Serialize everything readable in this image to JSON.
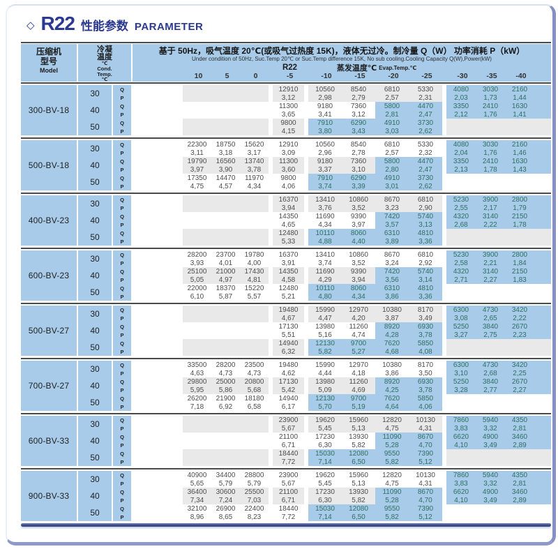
{
  "title": {
    "diamond": "◇",
    "r22": "R22",
    "cn": "性能参数",
    "en": "PARAMETER"
  },
  "colors": {
    "title_navy": "#2b3990",
    "panel_blue": "#a7cbe9",
    "highlight_blue": "#a7cbe9",
    "stripe_gray": "#e9e9e9",
    "value_on_blue": "#2e6f62",
    "separator_dark": "#4a4a4a"
  },
  "header": {
    "model_cn1": "压缩机",
    "model_cn2": "型号",
    "model_en": "Model",
    "cond_cn1": "冷凝",
    "cond_cn2": "温度",
    "cond_deg1": "℃",
    "cond_en1": "Cond.",
    "cond_en2": "Temp.",
    "cond_deg2": "℃",
    "condition_cn": "基于 50Hz，吸气温度 20℃(或吸气过热度 15K)，液体无过冷。制冷量 Q（W）  功率消耗 P（kW）",
    "condition_en": "Under condition of 50Hz, Suc.Temp 20℃ or Suc.Temp difference 15K, No sub cooling.Cooling Capacity Q(W),Power(kW)",
    "refrigerant": "R22",
    "evap_cn": "蒸发温度℃",
    "evap_en": "Evap.Temp.℃",
    "temps": [
      "10",
      "5",
      "0",
      "-5",
      "-10",
      "-15",
      "-20",
      "-25",
      "-30",
      "-35",
      "-40"
    ]
  },
  "qp_labels": [
    "Q",
    "P"
  ],
  "blocks": [
    {
      "model": "300-BV-18",
      "rows": [
        {
          "temp": "30",
          "q": [
            "",
            "",
            "",
            "12910",
            "10560",
            "8540",
            "6810",
            "5330",
            "4080",
            "3030",
            "2160"
          ],
          "p": [
            "",
            "",
            "",
            "3,12",
            "2,98",
            "2,79",
            "2,57",
            "2,31",
            "2,03",
            "1,73",
            "1,44"
          ]
        },
        {
          "temp": "40",
          "q": [
            "",
            "",
            "",
            "11300",
            "9180",
            "7360",
            "5800",
            "4470",
            "3350",
            "2410",
            "1630"
          ],
          "p": [
            "",
            "",
            "",
            "3,65",
            "3,41",
            "3,12",
            "2,81",
            "2,47",
            "2,12",
            "1,76",
            "1,41"
          ]
        },
        {
          "temp": "50",
          "q": [
            "",
            "",
            "",
            "9800",
            "7910",
            "6290",
            "4910",
            "3730",
            "",
            "",
            ""
          ],
          "p": [
            "",
            "",
            "",
            "4,15",
            "3,80",
            "3,43",
            "3,03",
            "2,62",
            "",
            "",
            ""
          ]
        }
      ]
    },
    {
      "model": "500-BV-18",
      "rows": [
        {
          "temp": "30",
          "q": [
            "22300",
            "18750",
            "15620",
            "12910",
            "10560",
            "8540",
            "6810",
            "5330",
            "4080",
            "3030",
            "2160"
          ],
          "p": [
            "3,11",
            "3,18",
            "3,17",
            "3,09",
            "2,96",
            "2,78",
            "2,57",
            "2,32",
            "2,04",
            "1,76",
            "1,46"
          ]
        },
        {
          "temp": "40",
          "q": [
            "19790",
            "16560",
            "13740",
            "11300",
            "9180",
            "7360",
            "5800",
            "4470",
            "3350",
            "2410",
            "1630"
          ],
          "p": [
            "3,97",
            "3,90",
            "3,78",
            "3,60",
            "3,37",
            "3,10",
            "2,80",
            "2,47",
            "2,13",
            "1,78",
            "1,43"
          ]
        },
        {
          "temp": "50",
          "q": [
            "17350",
            "14470",
            "11970",
            "9800",
            "7910",
            "6290",
            "4910",
            "3730",
            "",
            "",
            ""
          ],
          "p": [
            "4,75",
            "4,57",
            "4,34",
            "4,06",
            "3,74",
            "3,39",
            "3,01",
            "2,62",
            "",
            "",
            ""
          ]
        }
      ]
    },
    {
      "model": "400-BV-23",
      "rows": [
        {
          "temp": "30",
          "q": [
            "",
            "",
            "",
            "16370",
            "13410",
            "10860",
            "8670",
            "6810",
            "5230",
            "3900",
            "2800"
          ],
          "p": [
            "",
            "",
            "",
            "3,94",
            "3,76",
            "3,52",
            "3,23",
            "2,90",
            "2,55",
            "2,17",
            "1,79"
          ]
        },
        {
          "temp": "40",
          "q": [
            "",
            "",
            "",
            "14350",
            "11690",
            "9390",
            "7420",
            "5740",
            "4320",
            "3140",
            "2150"
          ],
          "p": [
            "",
            "",
            "",
            "4,65",
            "4,34",
            "3,97",
            "3,57",
            "3,13",
            "2,68",
            "2,22",
            "1,78"
          ]
        },
        {
          "temp": "50",
          "q": [
            "",
            "",
            "",
            "12480",
            "10110",
            "8060",
            "6310",
            "4810",
            "",
            "",
            ""
          ],
          "p": [
            "",
            "",
            "",
            "5,33",
            "4,88",
            "4,40",
            "3,89",
            "3,36",
            "",
            "",
            ""
          ]
        }
      ]
    },
    {
      "model": "600-BV-23",
      "rows": [
        {
          "temp": "30",
          "q": [
            "28200",
            "23700",
            "19780",
            "16370",
            "13410",
            "10860",
            "8670",
            "6810",
            "5230",
            "3900",
            "2800"
          ],
          "p": [
            "3,93",
            "4,01",
            "4,00",
            "3,91",
            "3,74",
            "3,52",
            "3,24",
            "2,92",
            "2,58",
            "2,21",
            "1,84"
          ]
        },
        {
          "temp": "40",
          "q": [
            "25100",
            "21000",
            "17430",
            "14350",
            "11690",
            "9390",
            "7420",
            "5740",
            "4320",
            "3140",
            "2150"
          ],
          "p": [
            "5,05",
            "4,97",
            "4,81",
            "4,58",
            "4,29",
            "3,94",
            "3,56",
            "3,14",
            "2,71",
            "2,27",
            "1,83"
          ]
        },
        {
          "temp": "50",
          "q": [
            "22000",
            "18370",
            "15220",
            "12480",
            "10110",
            "8060",
            "6310",
            "4810",
            "",
            "",
            ""
          ],
          "p": [
            "6,10",
            "5,87",
            "5,57",
            "5,21",
            "4,80",
            "4,34",
            "3,86",
            "3,36",
            "",
            "",
            ""
          ]
        }
      ]
    },
    {
      "model": "500-BV-27",
      "rows": [
        {
          "temp": "30",
          "q": [
            "",
            "",
            "",
            "19480",
            "15990",
            "12970",
            "10380",
            "8170",
            "6300",
            "4730",
            "3420"
          ],
          "p": [
            "",
            "",
            "",
            "4,67",
            "4,47",
            "4,20",
            "3,87",
            "3,49",
            "3,08",
            "2,65",
            "2,22"
          ]
        },
        {
          "temp": "40",
          "q": [
            "",
            "",
            "",
            "17130",
            "13980",
            "11260",
            "8920",
            "6930",
            "5250",
            "3840",
            "2670"
          ],
          "p": [
            "",
            "",
            "",
            "5,51",
            "5,16",
            "4,74",
            "4,28",
            "3,78",
            "3,27",
            "2,75",
            "2,23"
          ]
        },
        {
          "temp": "50",
          "q": [
            "",
            "",
            "",
            "14940",
            "12130",
            "9700",
            "7620",
            "5850",
            "",
            "",
            ""
          ],
          "p": [
            "",
            "",
            "",
            "6,32",
            "5,82",
            "5,27",
            "4,68",
            "4,08",
            "",
            "",
            ""
          ]
        }
      ]
    },
    {
      "model": "700-BV-27",
      "rows": [
        {
          "temp": "30",
          "q": [
            "33500",
            "28200",
            "23500",
            "19480",
            "15990",
            "12970",
            "10380",
            "8170",
            "6300",
            "4730",
            "3420"
          ],
          "p": [
            "4,63",
            "4,73",
            "4,73",
            "4,62",
            "4,44",
            "4,18",
            "3,86",
            "3,50",
            "3,10",
            "2,68",
            "2,25"
          ]
        },
        {
          "temp": "40",
          "q": [
            "29800",
            "25000",
            "20800",
            "17130",
            "13980",
            "11260",
            "8920",
            "6930",
            "5250",
            "3840",
            "2670"
          ],
          "p": [
            "5,95",
            "5,86",
            "5,68",
            "5,42",
            "5,09",
            "4,69",
            "4,25",
            "3,78",
            "3,28",
            "2,77",
            "2,27"
          ]
        },
        {
          "temp": "50",
          "q": [
            "26200",
            "21900",
            "18180",
            "14940",
            "12130",
            "9700",
            "7620",
            "5850",
            "",
            "",
            ""
          ],
          "p": [
            "7,18",
            "6,92",
            "6,58",
            "6,17",
            "5,70",
            "5,19",
            "4,64",
            "4,06",
            "",
            "",
            ""
          ]
        }
      ]
    },
    {
      "model": "600-BV-33",
      "rows": [
        {
          "temp": "30",
          "q": [
            "",
            "",
            "",
            "23900",
            "19620",
            "15960",
            "12820",
            "10130",
            "7860",
            "5940",
            "4350"
          ],
          "p": [
            "",
            "",
            "",
            "5,67",
            "5,45",
            "5,13",
            "4,75",
            "4,31",
            "3,83",
            "3,32",
            "2,81"
          ]
        },
        {
          "temp": "40",
          "q": [
            "",
            "",
            "",
            "21100",
            "17230",
            "13930",
            "11090",
            "8670",
            "6620",
            "4900",
            "3460"
          ],
          "p": [
            "",
            "",
            "",
            "6,71",
            "6,30",
            "5,82",
            "5,28",
            "4,70",
            "4,10",
            "3,49",
            "2,89"
          ]
        },
        {
          "temp": "50",
          "q": [
            "",
            "",
            "",
            "18440",
            "15030",
            "12080",
            "9550",
            "7390",
            "",
            "",
            ""
          ],
          "p": [
            "",
            "",
            "",
            "7,72",
            "7,14",
            "6,50",
            "5,82",
            "5,12",
            "",
            "",
            ""
          ]
        }
      ]
    },
    {
      "model": "900-BV-33",
      "rows": [
        {
          "temp": "30",
          "q": [
            "40900",
            "34400",
            "28800",
            "23900",
            "19620",
            "15960",
            "12820",
            "10130",
            "7860",
            "5940",
            "4350"
          ],
          "p": [
            "5,65",
            "5,79",
            "5,79",
            "5,67",
            "5,45",
            "5,13",
            "4,75",
            "4,31",
            "3,83",
            "3,32",
            "2,81"
          ]
        },
        {
          "temp": "40",
          "q": [
            "36400",
            "30600",
            "25500",
            "21100",
            "17230",
            "13930",
            "11090",
            "8670",
            "6620",
            "4900",
            "3460"
          ],
          "p": [
            "7,34",
            "7,24",
            "7,03",
            "6,71",
            "6,30",
            "5,82",
            "5,28",
            "4,70",
            "4,10",
            "3,49",
            "2,89"
          ]
        },
        {
          "temp": "50",
          "q": [
            "32100",
            "26900",
            "22400",
            "18440",
            "15030",
            "12080",
            "9550",
            "7390",
            "",
            "",
            ""
          ],
          "p": [
            "8,96",
            "8,65",
            "8,23",
            "7,72",
            "7,14",
            "6,50",
            "5,82",
            "5,12",
            "",
            "",
            ""
          ]
        }
      ]
    }
  ]
}
